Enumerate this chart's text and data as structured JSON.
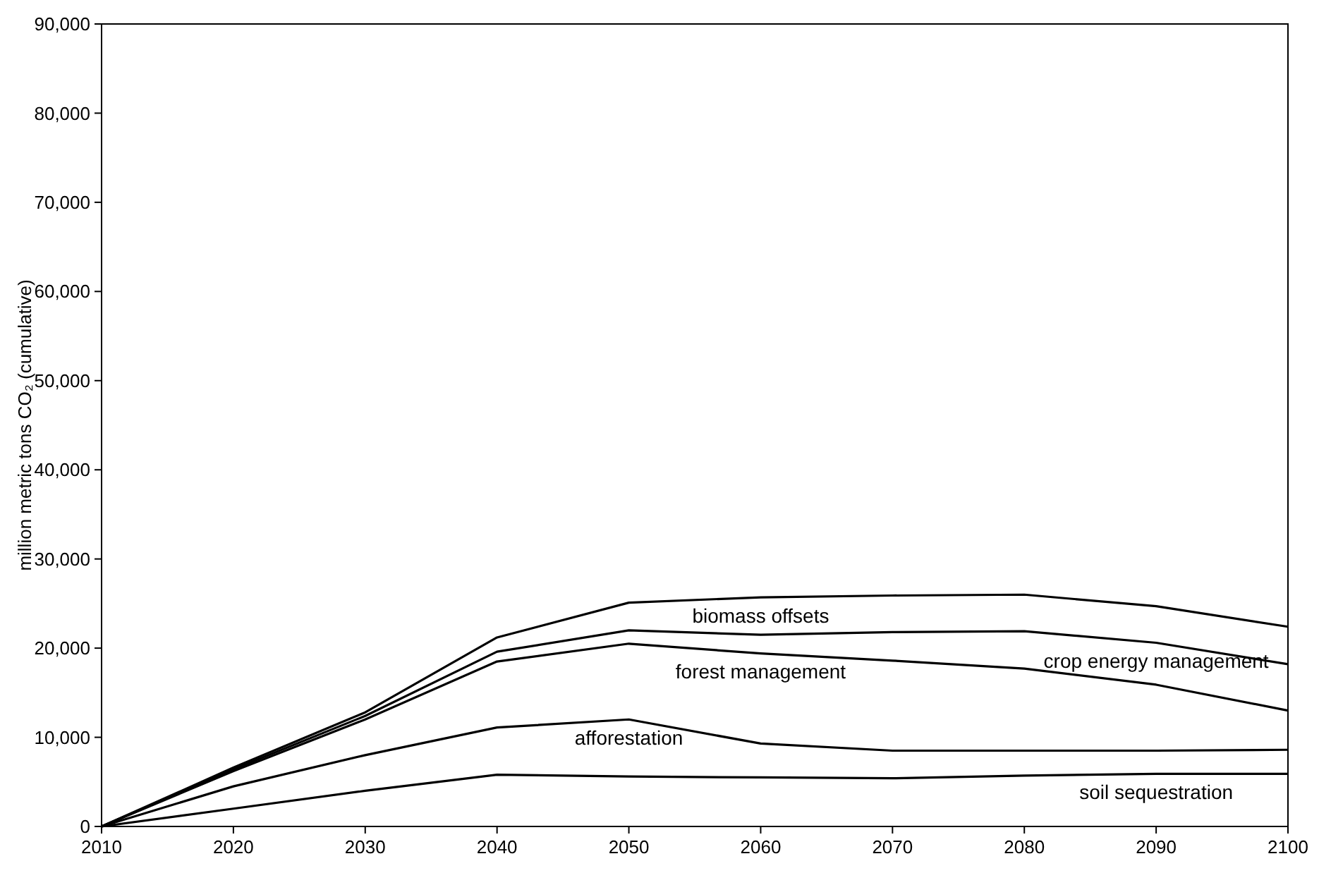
{
  "chart_data": {
    "type": "line",
    "ylabel": "million metric tons CO₂ (cumulative)",
    "x": [
      2010,
      2020,
      2030,
      2040,
      2050,
      2060,
      2070,
      2080,
      2090,
      2100
    ],
    "series": [
      {
        "name": "soil sequestration",
        "color": "#000000",
        "values": [
          0,
          2000,
          4000,
          5800,
          5600,
          5500,
          5400,
          5700,
          5900,
          5900
        ]
      },
      {
        "name": "afforestation",
        "color": "#000000",
        "values": [
          0,
          4500,
          8000,
          11100,
          12000,
          9300,
          8500,
          8500,
          8500,
          8600
        ]
      },
      {
        "name": "forest management",
        "color": "#000000",
        "values": [
          0,
          6200,
          12000,
          18500,
          20500,
          19400,
          18600,
          17700,
          15900,
          13000
        ]
      },
      {
        "name": "crop energy management",
        "color": "#000000",
        "values": [
          0,
          6400,
          12400,
          19600,
          22000,
          21500,
          21800,
          21900,
          20600,
          18200
        ]
      },
      {
        "name": "biomass offsets",
        "color": "#000000",
        "values": [
          0,
          6600,
          12800,
          21200,
          25100,
          25700,
          25900,
          26000,
          24700,
          22400
        ]
      }
    ],
    "xlim": [
      2010,
      2100
    ],
    "xticks": [
      2010,
      2020,
      2030,
      2040,
      2050,
      2060,
      2070,
      2080,
      2090,
      2100
    ],
    "ylim": [
      0,
      90000
    ],
    "yticks": [
      0,
      {
        "value": 10000,
        "label": "10,000"
      },
      {
        "value": 20000,
        "label": "20,000"
      },
      {
        "value": 30000,
        "label": "30,000"
      },
      {
        "value": 40000,
        "label": "40,000"
      },
      {
        "value": 50000,
        "label": "50,000"
      },
      {
        "value": 60000,
        "label": "60,000"
      },
      {
        "value": 70000,
        "label": "70,000"
      },
      {
        "value": 80000,
        "label": "80,000"
      },
      {
        "value": 90000,
        "label": "90,000"
      }
    ],
    "grid": false,
    "marker": "none",
    "line_style": "solid"
  }
}
